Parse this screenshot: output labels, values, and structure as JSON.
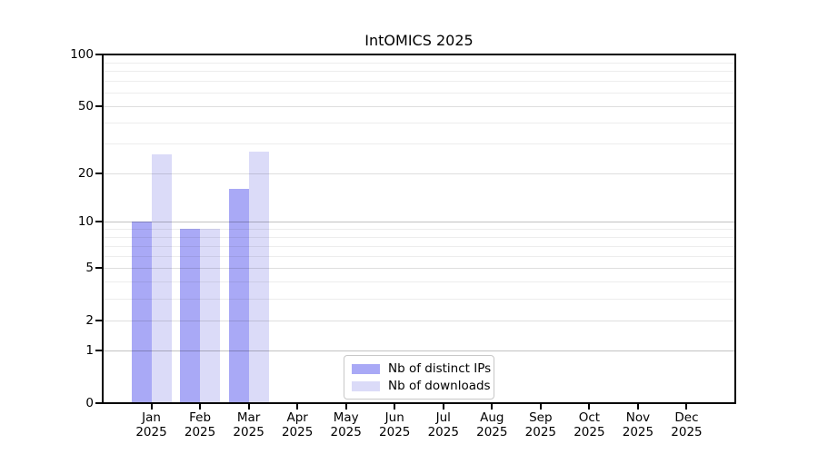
{
  "chart_data": {
    "type": "bar",
    "title": "IntOMICS 2025",
    "x_axis": {
      "months": [
        "Jan",
        "Feb",
        "Mar",
        "Apr",
        "May",
        "Jun",
        "Jul",
        "Aug",
        "Sep",
        "Oct",
        "Nov",
        "Dec"
      ],
      "year_label": "2025"
    },
    "y_axis": {
      "scale": "log1p",
      "range": [
        0,
        100
      ],
      "ticks": [
        0,
        1,
        2,
        5,
        10,
        20,
        50,
        100
      ],
      "decade_gridlines": [
        1,
        10,
        100
      ],
      "minor_gridlines": [
        3,
        4,
        6,
        7,
        8,
        9,
        30,
        40,
        60,
        70,
        80,
        90
      ],
      "grid": true
    },
    "series": [
      {
        "name": "Nb of distinct IPs",
        "color": "#a9a9f6",
        "values": [
          10,
          9,
          16,
          0,
          0,
          0,
          0,
          0,
          0,
          0,
          0,
          0
        ]
      },
      {
        "name": "Nb of downloads",
        "color": "#dbdbf8",
        "values": [
          26,
          9,
          27,
          0,
          0,
          0,
          0,
          0,
          0,
          0,
          0,
          0
        ]
      }
    ],
    "legend": {
      "position": "bottom-center-inside"
    }
  }
}
